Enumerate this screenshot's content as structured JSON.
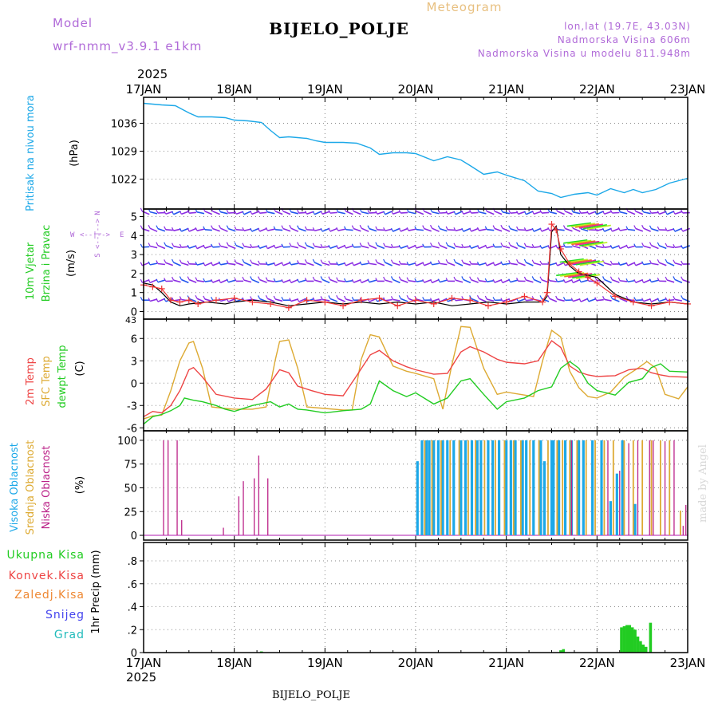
{
  "header": {
    "model_label": "Model",
    "model_name": "wrf-nmm_v3.9.1 e1km",
    "chart_type_label": "Meteogram",
    "station_title": "BIJELO_POLJE",
    "coords": "lon,lat (19.7E, 43.03N)",
    "altitude": "Nadmorska Visina 606m",
    "model_altitude": "Nadmorska Visina u modelu 811.948m",
    "year_top": "2025",
    "year_bottom": "2025",
    "footer_station": "BIJELO_POLJE",
    "credit": "made by Angel"
  },
  "colors": {
    "pressure": "#1ca8e8",
    "wind_label": "#22cc22",
    "barb_purple": "#8a2be2",
    "barb_blue": "#2255ee",
    "gust": "#ee3333",
    "temp2m": "#ee4444",
    "sfc_temp": "#ddaa33",
    "dewpt": "#22cc22",
    "cloud_high": "#1ca8e8",
    "cloud_mid": "#ddaa33",
    "cloud_low": "#bb2288",
    "precip": "#22cc22",
    "grid": "#888888"
  },
  "time_axis": {
    "ticks": [
      "17JAN",
      "18JAN",
      "19JAN",
      "20JAN",
      "21JAN",
      "22JAN",
      "23JAN"
    ]
  },
  "panels": {
    "pressure": {
      "ylabel": "Pritisak na nivou mora",
      "unit": "(hPa)"
    },
    "wind": {
      "ylabel1": "10m Vjetar",
      "ylabel2": "Brzina i Pravac",
      "unit": "(m/s)",
      "compass_n": "N",
      "compass_s": "S",
      "compass_w": "W",
      "compass_e": "E",
      "compass_axis": "<--|-->",
      "corner_value": "43"
    },
    "temp": {
      "label_2m": "2m Temp",
      "label_sfc": "SFC Temp",
      "label_dewpt": "dewpt Temp",
      "unit": "(C)"
    },
    "cloud": {
      "label_high": "Visoka Oblacnost",
      "label_mid": "Srednja Oblacnost",
      "label_low": "Niska Oblacnost",
      "unit": "(%)"
    },
    "precip": {
      "label_total": "Ukupna Kisa",
      "label_conv": "Konvek.Kisa",
      "label_frz": "Zaledj.Kisa",
      "label_snow": "Snijeg",
      "label_hail": "Grad",
      "ylabel": "1hr Precip (mm)"
    }
  },
  "chart_data": [
    {
      "type": "line",
      "title": "Pritisak na nivou mora",
      "ylabel": "(hPa)",
      "x_unit": "days since 17JAN 00UTC",
      "ylim": [
        1014.5,
        1042.5
      ],
      "yticks": [
        1022,
        1029,
        1036
      ],
      "series": [
        {
          "name": "Pritisak na nivou mora",
          "x": [
            0,
            0.1,
            0.2,
            0.35,
            0.5,
            0.6,
            0.75,
            0.9,
            1,
            1.15,
            1.3,
            1.4,
            1.5,
            1.6,
            1.7,
            1.8,
            1.9,
            2,
            2.2,
            2.35,
            2.5,
            2.6,
            2.75,
            2.9,
            3,
            3.2,
            3.35,
            3.5,
            3.6,
            3.75,
            3.9,
            4,
            4.2,
            4.35,
            4.5,
            4.6,
            4.75,
            4.9,
            5,
            5.15,
            5.3,
            5.4,
            5.5,
            5.65,
            5.8,
            6
          ],
          "y": [
            1041,
            1040.8,
            1040.6,
            1040.4,
            1038.6,
            1037.6,
            1037.6,
            1037.4,
            1036.8,
            1036.6,
            1036.2,
            1034.2,
            1032.4,
            1032.6,
            1032.4,
            1032.2,
            1031.6,
            1031.2,
            1031.2,
            1031.0,
            1029.8,
            1028.2,
            1028.6,
            1028.6,
            1028.4,
            1026.6,
            1027.6,
            1026.8,
            1025.4,
            1023.2,
            1023.8,
            1023.0,
            1021.6,
            1019.0,
            1018.4,
            1017.4,
            1018.2,
            1018.6,
            1018.0,
            1019.6,
            1018.6,
            1019.4,
            1018.6,
            1019.4,
            1021.0,
            1022.2
          ]
        }
      ]
    },
    {
      "type": "line",
      "title": "10m Vjetar Brzina i Pravac",
      "ylabel": "(m/s)",
      "x_unit": "days since 17JAN 00UTC",
      "ylim": [
        -0.4,
        5.4
      ],
      "yticks": [
        0,
        1,
        2,
        3,
        4,
        5
      ],
      "barb_levels": [
        0.6,
        1.6,
        2.5,
        3.4,
        4.3,
        5.2
      ],
      "series": [
        {
          "name": "speed",
          "x": [
            0,
            0.1,
            0.2,
            0.3,
            0.4,
            0.5,
            0.7,
            0.9,
            1,
            1.2,
            1.4,
            1.6,
            1.8,
            2,
            2.2,
            2.4,
            2.6,
            2.8,
            3,
            3.2,
            3.4,
            3.6,
            3.8,
            4,
            4.2,
            4.4,
            4.45,
            4.5,
            4.55,
            4.6,
            4.7,
            4.8,
            4.9,
            5,
            5.2,
            5.4,
            5.6,
            5.8,
            6
          ],
          "y": [
            1.5,
            1.4,
            1.0,
            0.5,
            0.3,
            0.4,
            0.5,
            0.4,
            0.5,
            0.6,
            0.5,
            0.3,
            0.4,
            0.5,
            0.4,
            0.5,
            0.4,
            0.5,
            0.4,
            0.5,
            0.3,
            0.4,
            0.5,
            0.4,
            0.5,
            0.5,
            0.8,
            4.2,
            4.5,
            3.0,
            2.4,
            2.0,
            1.9,
            1.8,
            0.9,
            0.5,
            0.4,
            0.5,
            0.4
          ]
        },
        {
          "name": "gust",
          "x": [
            0,
            0.1,
            0.2,
            0.3,
            0.4,
            0.5,
            0.6,
            0.8,
            1,
            1.2,
            1.4,
            1.6,
            1.8,
            2,
            2.2,
            2.4,
            2.6,
            2.8,
            3,
            3.2,
            3.4,
            3.6,
            3.8,
            4,
            4.2,
            4.4,
            4.45,
            4.5,
            4.55,
            4.6,
            4.7,
            4.8,
            4.9,
            5,
            5.2,
            5.4,
            5.6,
            5.8,
            6
          ],
          "y": [
            1.4,
            1.3,
            1.2,
            0.6,
            0.5,
            0.6,
            0.4,
            0.6,
            0.7,
            0.5,
            0.4,
            0.2,
            0.6,
            0.5,
            0.3,
            0.6,
            0.7,
            0.3,
            0.6,
            0.4,
            0.7,
            0.6,
            0.3,
            0.5,
            0.8,
            0.5,
            1.0,
            4.6,
            4.3,
            3.3,
            2.5,
            2.1,
            1.8,
            1.5,
            0.8,
            0.5,
            0.3,
            0.5,
            0.4
          ]
        }
      ]
    },
    {
      "type": "line",
      "title": "2m Temp / SFC Temp / dewpt Temp",
      "ylabel": "(C)",
      "x_unit": "days since 17JAN 00UTC",
      "ylim": [
        -6.4,
        8.6
      ],
      "yticks": [
        -6,
        -3,
        0,
        3,
        6
      ],
      "series": [
        {
          "name": "2m Temp",
          "x": [
            0,
            0.1,
            0.2,
            0.3,
            0.4,
            0.5,
            0.55,
            0.65,
            0.8,
            1,
            1.2,
            1.35,
            1.5,
            1.6,
            1.7,
            1.85,
            2,
            2.2,
            2.35,
            2.5,
            2.6,
            2.75,
            2.9,
            3,
            3.2,
            3.35,
            3.5,
            3.6,
            3.75,
            3.9,
            4,
            4.2,
            4.35,
            4.5,
            4.6,
            4.7,
            4.8,
            4.9,
            5,
            5.2,
            5.35,
            5.5,
            5.6,
            5.7,
            5.8,
            6
          ],
          "y": [
            -4.5,
            -3.8,
            -4.0,
            -3.0,
            -1.0,
            1.8,
            2.1,
            0.8,
            -1.5,
            -2.0,
            -2.2,
            -0.8,
            1.8,
            1.4,
            -0.4,
            -1.0,
            -1.5,
            -1.7,
            1.0,
            3.8,
            4.4,
            3.0,
            2.2,
            1.8,
            1.2,
            1.3,
            4.2,
            4.9,
            4.2,
            3.2,
            2.8,
            2.6,
            3.0,
            5.7,
            4.8,
            2.3,
            1.5,
            1.1,
            0.9,
            1.0,
            1.8,
            2.0,
            1.4,
            1.1,
            0.9,
            0.8
          ]
        },
        {
          "name": "SFC Temp",
          "x": [
            0,
            0.1,
            0.2,
            0.3,
            0.4,
            0.5,
            0.55,
            0.65,
            0.75,
            0.9,
            1,
            1.2,
            1.35,
            1.45,
            1.5,
            1.6,
            1.7,
            1.8,
            2,
            2.2,
            2.3,
            2.4,
            2.5,
            2.6,
            2.75,
            2.9,
            3,
            3.2,
            3.3,
            3.4,
            3.5,
            3.6,
            3.75,
            3.9,
            4,
            4.2,
            4.3,
            4.4,
            4.5,
            4.6,
            4.7,
            4.8,
            4.9,
            5,
            5.15,
            5.3,
            5.45,
            5.55,
            5.65,
            5.75,
            5.9,
            6
          ],
          "y": [
            -4.8,
            -4.4,
            -4.3,
            -1.0,
            3.0,
            5.4,
            5.6,
            2.0,
            -3.2,
            -3.4,
            -3.5,
            -3.5,
            -3.2,
            3.0,
            5.6,
            5.8,
            2.0,
            -3.2,
            -3.4,
            -3.6,
            -3.6,
            3.2,
            6.5,
            6.2,
            2.3,
            1.6,
            1.3,
            0.6,
            -3.5,
            2.5,
            7.6,
            7.5,
            2.0,
            -1.5,
            -1.2,
            -1.6,
            -1.8,
            3.0,
            7.1,
            6.2,
            1.6,
            -0.6,
            -1.8,
            -2.0,
            -1.2,
            0.8,
            2.0,
            2.9,
            2.0,
            -1.5,
            -2.1,
            -0.5
          ]
        },
        {
          "name": "dewpt Temp",
          "x": [
            0,
            0.1,
            0.2,
            0.3,
            0.4,
            0.45,
            0.55,
            0.65,
            0.8,
            0.9,
            1,
            1.2,
            1.4,
            1.5,
            1.6,
            1.7,
            1.8,
            2,
            2.2,
            2.4,
            2.5,
            2.6,
            2.75,
            2.9,
            3,
            3.2,
            3.35,
            3.5,
            3.6,
            3.75,
            3.9,
            4,
            4.2,
            4.35,
            4.5,
            4.6,
            4.7,
            4.8,
            4.9,
            5,
            5.2,
            5.35,
            5.5,
            5.6,
            5.7,
            5.8,
            6
          ],
          "y": [
            -5.5,
            -4.5,
            -4.2,
            -3.7,
            -3.0,
            -2.0,
            -2.3,
            -2.5,
            -3.0,
            -3.5,
            -3.8,
            -3.0,
            -2.5,
            -3.2,
            -2.8,
            -3.5,
            -3.6,
            -4.0,
            -3.7,
            -3.5,
            -2.8,
            0.3,
            -1.0,
            -1.8,
            -1.3,
            -2.8,
            -2.0,
            0.3,
            0.6,
            -1.5,
            -3.5,
            -2.5,
            -2.0,
            -1.0,
            -0.5,
            2.0,
            2.9,
            2.0,
            0.0,
            -1.0,
            -1.6,
            0.1,
            0.6,
            2.1,
            2.6,
            1.6,
            1.5
          ]
        }
      ]
    },
    {
      "type": "bar",
      "title": "Visoka / Srednja / Niska Oblacnost",
      "ylabel": "(%)",
      "x_unit": "days since 17JAN 00UTC",
      "ylim": [
        -5,
        110
      ],
      "yticks": [
        0,
        25,
        50,
        75,
        100
      ],
      "series": [
        {
          "name": "Niska Oblacnost",
          "x": [
            0.22,
            0.27,
            0.37,
            0.42,
            0.88,
            1.05,
            1.1,
            1.22,
            1.27,
            1.37,
            4.72,
            5.12,
            5.25,
            5.35,
            5.45,
            5.58,
            5.62,
            5.75,
            5.85,
            5.95,
            5.98
          ],
          "y": [
            100,
            100,
            100,
            16,
            8,
            41,
            57,
            60,
            84,
            60,
            100,
            100,
            68,
            97,
            100,
            100,
            100,
            99,
            100,
            10,
            32
          ]
        },
        {
          "name": "Visoka Oblacnost",
          "x": [
            3.02,
            3.07,
            3.12,
            3.15,
            3.2,
            3.25,
            3.3,
            3.35,
            3.42,
            3.5,
            3.55,
            3.62,
            3.68,
            3.72,
            3.8,
            3.85,
            3.92,
            4.0,
            4.05,
            4.1,
            4.18,
            4.22,
            4.3,
            4.38,
            4.42,
            4.5,
            4.52,
            4.58,
            4.65,
            4.72,
            4.8,
            4.85,
            4.95,
            5.05,
            5.15,
            5.22,
            5.28,
            5.42
          ],
          "y": [
            78,
            100,
            100,
            100,
            100,
            100,
            100,
            100,
            100,
            100,
            100,
            100,
            100,
            100,
            100,
            100,
            100,
            100,
            100,
            100,
            100,
            100,
            100,
            100,
            78,
            100,
            100,
            100,
            100,
            100,
            100,
            100,
            100,
            100,
            36,
            65,
            100,
            33
          ]
        },
        {
          "name": "Srednja Oblacnost",
          "x": [
            3.1,
            3.18,
            3.28,
            3.38,
            3.48,
            3.58,
            3.66,
            3.76,
            3.88,
            3.98,
            4.08,
            4.16,
            4.26,
            4.36,
            4.46,
            4.56,
            4.62,
            4.7,
            4.78,
            4.88,
            4.98,
            5.08,
            5.18,
            5.3,
            5.4,
            5.5,
            5.6,
            5.7,
            5.8,
            5.92
          ],
          "y": [
            100,
            100,
            100,
            100,
            100,
            100,
            100,
            100,
            100,
            100,
            100,
            100,
            100,
            100,
            100,
            100,
            100,
            100,
            100,
            100,
            100,
            100,
            100,
            100,
            100,
            100,
            100,
            100,
            100,
            26
          ]
        }
      ]
    },
    {
      "type": "bar",
      "title": "1hr Precip",
      "ylabel": "1hr Precip (mm)",
      "x_unit": "days since 17JAN 00UTC",
      "ylim": [
        0,
        0.96
      ],
      "yticks": [
        0,
        0.2,
        0.4,
        0.6,
        0.8
      ],
      "series": [
        {
          "name": "Ukupna Kisa",
          "x": [
            1.3,
            4.6,
            4.63,
            5.27,
            5.3,
            5.33,
            5.36,
            5.39,
            5.42,
            5.45,
            5.48,
            5.51,
            5.54,
            5.59
          ],
          "y": [
            0.01,
            0.02,
            0.03,
            0.22,
            0.23,
            0.24,
            0.24,
            0.22,
            0.2,
            0.14,
            0.1,
            0.07,
            0.05,
            0.26
          ]
        }
      ]
    }
  ]
}
